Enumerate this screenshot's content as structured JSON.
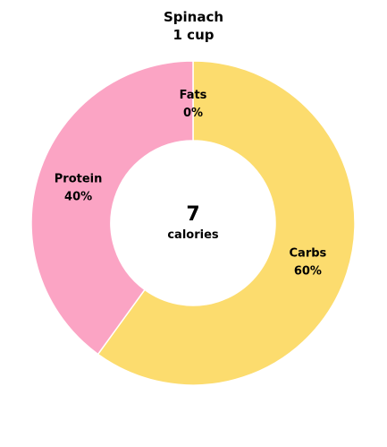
{
  "chart_data": {
    "type": "pie",
    "style": "donut",
    "title": "Spinach",
    "subtitle": "1 cup",
    "center_value": "7",
    "center_label": "calories",
    "slices": [
      {
        "name": "Fats",
        "percent_label": "0%",
        "value": 0,
        "color": "#fcdc6e"
      },
      {
        "name": "Carbs",
        "percent_label": "60%",
        "value": 60,
        "color": "#fcdc6e"
      },
      {
        "name": "Protein",
        "percent_label": "40%",
        "value": 40,
        "color": "#fba4c4"
      }
    ]
  }
}
